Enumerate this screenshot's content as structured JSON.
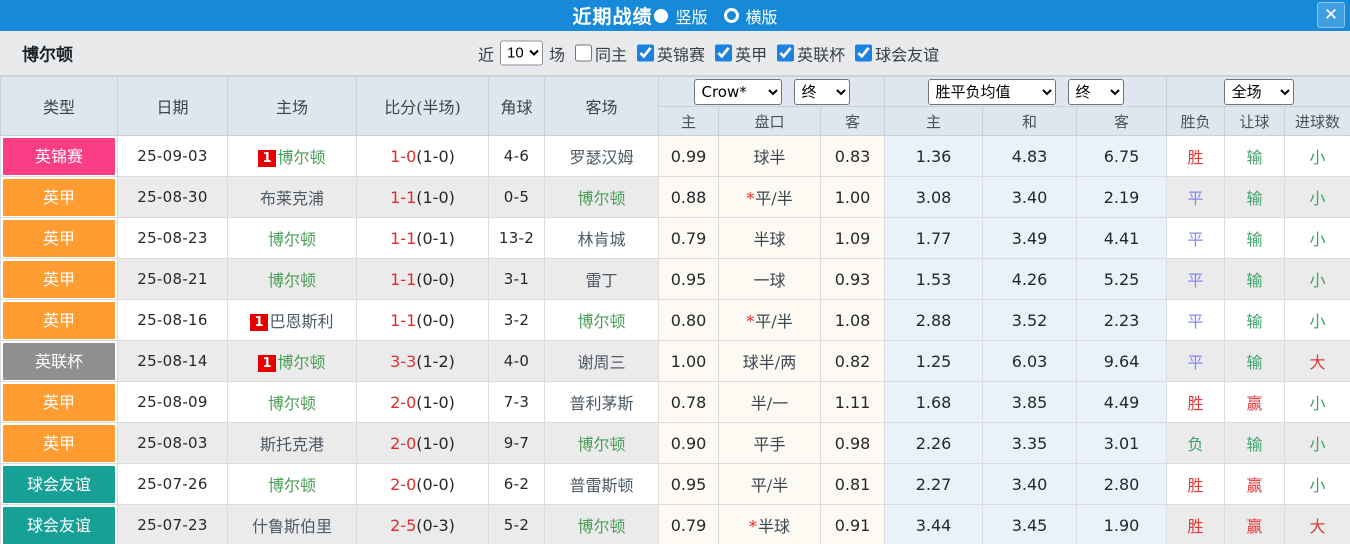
{
  "topbar": {
    "title": "近期战绩",
    "vertical_label": "竖版",
    "horizontal_label": "横版",
    "close_icon": "✕",
    "bar_color": "#1689d8"
  },
  "filterbar": {
    "team": "博尔顿",
    "near_label": "近",
    "near_count": "10",
    "games_label": "场",
    "same_home_label": "同主",
    "league_filters": [
      {
        "label": "英锦赛",
        "checked": true
      },
      {
        "label": "英甲",
        "checked": true
      },
      {
        "label": "英联杯",
        "checked": true
      },
      {
        "label": "球会友谊",
        "checked": true
      }
    ]
  },
  "table": {
    "selects": {
      "company": "Crow*",
      "company_final": "终",
      "mean": "胜平负均值",
      "mean_final": "终",
      "scope": "全场"
    },
    "headers": {
      "type": "类型",
      "date": "日期",
      "home": "主场",
      "score": "比分(半场)",
      "corner": "角球",
      "away": "客场",
      "odds_home": "主",
      "handicap": "盘口",
      "odds_away": "客",
      "mean_home": "主",
      "mean_draw": "和",
      "mean_away": "客",
      "result": "胜负",
      "handicap_result": "让球",
      "goals": "进球数"
    },
    "result_colors": {
      "win": "#e03a3a",
      "draw": "#8787f2",
      "lose": "#3fa36b"
    },
    "rows": [
      {
        "league": "英锦赛",
        "color": "#fb3d85",
        "date": "25-09-03",
        "badge": "1",
        "home": "博尔顿",
        "score": "1-0",
        "half": "(1-0)",
        "corner": "4-6",
        "away": "罗瑟汉姆",
        "odds_home": "0.99",
        "star": false,
        "handicap": "球半",
        "odds_away": "0.83",
        "mean_home": "1.36",
        "mean_draw": "4.83",
        "mean_away": "6.75",
        "result": "胜",
        "handicap_result": "输",
        "goals": "小"
      },
      {
        "league": "英甲",
        "color": "#ff9d33",
        "date": "25-08-30",
        "badge": null,
        "home": "布莱克浦",
        "score": "1-1",
        "half": "(1-0)",
        "corner": "0-5",
        "away": "博尔顿",
        "odds_home": "0.88",
        "star": true,
        "handicap": "平/半",
        "odds_away": "1.00",
        "mean_home": "3.08",
        "mean_draw": "3.40",
        "mean_away": "2.19",
        "result": "平",
        "handicap_result": "输",
        "goals": "小"
      },
      {
        "league": "英甲",
        "color": "#ff9d33",
        "date": "25-08-23",
        "badge": null,
        "home": "博尔顿",
        "score": "1-1",
        "half": "(0-1)",
        "corner": "13-2",
        "away": "林肯城",
        "odds_home": "0.79",
        "star": false,
        "handicap": "半球",
        "odds_away": "1.09",
        "mean_home": "1.77",
        "mean_draw": "3.49",
        "mean_away": "4.41",
        "result": "平",
        "handicap_result": "输",
        "goals": "小"
      },
      {
        "league": "英甲",
        "color": "#ff9d33",
        "date": "25-08-21",
        "badge": null,
        "home": "博尔顿",
        "score": "1-1",
        "half": "(0-0)",
        "corner": "3-1",
        "away": "雷丁",
        "odds_home": "0.95",
        "star": false,
        "handicap": "一球",
        "odds_away": "0.93",
        "mean_home": "1.53",
        "mean_draw": "4.26",
        "mean_away": "5.25",
        "result": "平",
        "handicap_result": "输",
        "goals": "小"
      },
      {
        "league": "英甲",
        "color": "#ff9d33",
        "date": "25-08-16",
        "badge": "1",
        "home": "巴恩斯利",
        "score": "1-1",
        "half": "(0-0)",
        "corner": "3-2",
        "away": "博尔顿",
        "odds_home": "0.80",
        "star": true,
        "handicap": "平/半",
        "odds_away": "1.08",
        "mean_home": "2.88",
        "mean_draw": "3.52",
        "mean_away": "2.23",
        "result": "平",
        "handicap_result": "输",
        "goals": "小"
      },
      {
        "league": "英联杯",
        "color": "#8f8f8f",
        "date": "25-08-14",
        "badge": "1",
        "home": "博尔顿",
        "score": "3-3",
        "half": "(1-2)",
        "corner": "4-0",
        "away": "谢周三",
        "odds_home": "1.00",
        "star": false,
        "handicap": "球半/两",
        "odds_away": "0.82",
        "mean_home": "1.25",
        "mean_draw": "6.03",
        "mean_away": "9.64",
        "result": "平",
        "handicap_result": "输",
        "goals": "大"
      },
      {
        "league": "英甲",
        "color": "#ff9d33",
        "date": "25-08-09",
        "badge": null,
        "home": "博尔顿",
        "score": "2-0",
        "half": "(1-0)",
        "corner": "7-3",
        "away": "普利茅斯",
        "odds_home": "0.78",
        "star": false,
        "handicap": "半/一",
        "odds_away": "1.11",
        "mean_home": "1.68",
        "mean_draw": "3.85",
        "mean_away": "4.49",
        "result": "胜",
        "handicap_result": "赢",
        "goals": "小"
      },
      {
        "league": "英甲",
        "color": "#ff9d33",
        "date": "25-08-03",
        "badge": null,
        "home": "斯托克港",
        "score": "2-0",
        "half": "(1-0)",
        "corner": "9-7",
        "away": "博尔顿",
        "odds_home": "0.90",
        "star": false,
        "handicap": "平手",
        "odds_away": "0.98",
        "mean_home": "2.26",
        "mean_draw": "3.35",
        "mean_away": "3.01",
        "result": "负",
        "handicap_result": "输",
        "goals": "小"
      },
      {
        "league": "球会友谊",
        "color": "#16a096",
        "date": "25-07-26",
        "badge": null,
        "home": "博尔顿",
        "score": "2-0",
        "half": "(0-0)",
        "corner": "6-2",
        "away": "普雷斯顿",
        "odds_home": "0.95",
        "star": false,
        "handicap": "平/半",
        "odds_away": "0.81",
        "mean_home": "2.27",
        "mean_draw": "3.40",
        "mean_away": "2.80",
        "result": "胜",
        "handicap_result": "赢",
        "goals": "小"
      },
      {
        "league": "球会友谊",
        "color": "#16a096",
        "date": "25-07-23",
        "badge": null,
        "home": "什鲁斯伯里",
        "score": "2-5",
        "half": "(0-3)",
        "corner": "5-2",
        "away": "博尔顿",
        "odds_home": "0.79",
        "star": true,
        "handicap": "半球",
        "odds_away": "0.91",
        "mean_home": "3.44",
        "mean_draw": "3.45",
        "mean_away": "1.90",
        "result": "胜",
        "handicap_result": "赢",
        "goals": "大"
      }
    ]
  }
}
